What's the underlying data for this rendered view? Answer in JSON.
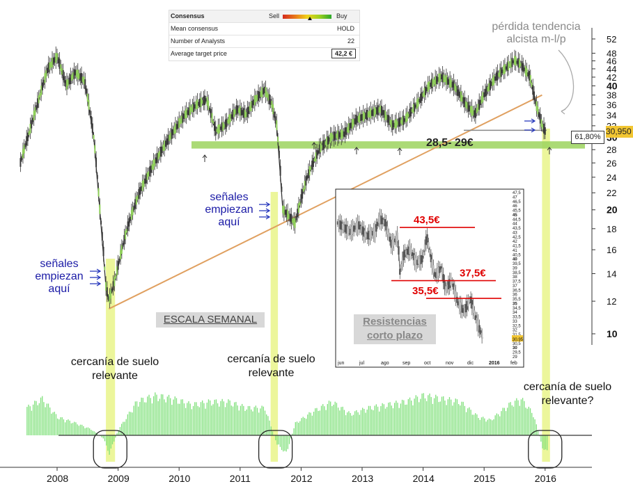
{
  "consensus": {
    "title": "Consensus",
    "sell": "Sell",
    "buy": "Buy",
    "rows": [
      {
        "label": "Mean consensus",
        "value": "HOLD"
      },
      {
        "label": "Number of Analysts",
        "value": "22"
      },
      {
        "label": "Average target price",
        "value": "42,2 €"
      }
    ]
  },
  "annotations": {
    "trend_loss": "pérdida tendencia alcista m-l/p",
    "signals_1": "señales empiezan aquí",
    "signals_2": "señales empiezan aquí",
    "weekly_scale": "ESCALA SEMANAL",
    "support_zone": "28,5- 29€",
    "fib_level": "61,80%",
    "last_price": "30,950",
    "floor_1": "cercanía de suelo relevante",
    "floor_2": "cercanía de suelo relevante",
    "floor_3": "cercanía de suelo relevante?",
    "resistances": "Resistencias corto plazo"
  },
  "chart_data": [
    {
      "type": "line",
      "title": "ESCALA SEMANAL",
      "x_label": "",
      "y_label": "",
      "y_scale": "log",
      "ylim": [
        9,
        54
      ],
      "y_ticks": [
        52,
        48,
        46,
        44,
        42,
        40,
        38,
        36,
        34,
        32,
        30,
        28,
        26,
        24,
        22,
        20,
        18,
        16,
        14,
        12,
        10
      ],
      "x_ticks": [
        "2008",
        "2009",
        "2010",
        "2011",
        "2012",
        "2013",
        "2014",
        "2015",
        "2016"
      ],
      "series": [
        {
          "name": "price",
          "x": [
            2007.4,
            2007.55,
            2007.7,
            2007.85,
            2008.0,
            2008.15,
            2008.3,
            2008.45,
            2008.6,
            2008.7,
            2008.8,
            2008.85,
            2008.95,
            2009.15,
            2009.35,
            2009.6,
            2009.85,
            2010.1,
            2010.3,
            2010.45,
            2010.6,
            2010.75,
            2010.95,
            2011.1,
            2011.25,
            2011.4,
            2011.52,
            2011.6,
            2011.7,
            2011.9,
            2012.1,
            2012.3,
            2012.5,
            2012.7,
            2012.9,
            2013.1,
            2013.3,
            2013.5,
            2013.7,
            2013.9,
            2014.1,
            2014.3,
            2014.5,
            2014.7,
            2014.85,
            2015.0,
            2015.2,
            2015.35,
            2015.5,
            2015.6,
            2015.75,
            2015.85,
            2015.95,
            2016.0
          ],
          "values": [
            26,
            31,
            37,
            44,
            47,
            40,
            43,
            41,
            30,
            20,
            13,
            12,
            13.5,
            18,
            22,
            26,
            30,
            34,
            36,
            37,
            31,
            32,
            35,
            34,
            37,
            39,
            36,
            32,
            20,
            18.5,
            24,
            28,
            30,
            30.5,
            33,
            34,
            35,
            32,
            33,
            36,
            40,
            42,
            40,
            36,
            34,
            38,
            42,
            44,
            46,
            45,
            42,
            36,
            32,
            31
          ]
        }
      ],
      "support_band": [
        28.5,
        29
      ],
      "fib_retracement": {
        "label": "61,80%",
        "value": 30.95
      },
      "trendline": {
        "from": {
          "x": 2008.85,
          "y": 11.5
        },
        "to": {
          "x": 2015.95,
          "y": 38
        }
      },
      "histogram": {
        "name": "oscillator",
        "x": [
          2007.5,
          2007.75,
          2008.0,
          2008.3,
          2008.55,
          2008.75,
          2008.85,
          2009.0,
          2009.3,
          2009.6,
          2009.9,
          2010.2,
          2010.5,
          2010.8,
          2011.1,
          2011.4,
          2011.6,
          2011.75,
          2011.9,
          2012.2,
          2012.5,
          2012.8,
          2013.1,
          2013.4,
          2013.7,
          2014.0,
          2014.3,
          2014.6,
          2014.9,
          2015.1,
          2015.4,
          2015.6,
          2015.8,
          2015.95,
          2016.05
        ],
        "values": [
          45,
          60,
          30,
          20,
          10,
          -5,
          -30,
          10,
          55,
          65,
          60,
          50,
          55,
          55,
          45,
          45,
          -15,
          -30,
          20,
          40,
          55,
          35,
          45,
          50,
          55,
          65,
          60,
          55,
          30,
          25,
          50,
          60,
          35,
          -20,
          -30
        ]
      }
    },
    {
      "type": "line",
      "title": "Resistencias corto plazo",
      "x_ticks": [
        "jun",
        "jul",
        "ago",
        "sep",
        "oct",
        "nov",
        "dic",
        "2016",
        "feb"
      ],
      "y_ticks": [
        "47,5",
        "47",
        "46,5",
        "46",
        "45,5",
        "45",
        "44,5",
        "44",
        "43,5",
        "43",
        "42,5",
        "42",
        "41,5",
        "41",
        "40,5",
        "40",
        "39,5",
        "39",
        "38,5",
        "38",
        "37,5",
        "37",
        "36,5",
        "36",
        "35,5",
        "35",
        "34,5",
        "34",
        "33,5",
        "33",
        "32,5",
        "32",
        "31,5",
        "31",
        "30,95",
        "30,5",
        "30",
        "29,5",
        "29"
      ],
      "ylim": [
        29,
        47.5
      ],
      "resistance_levels": [
        {
          "label": "43,5€",
          "value": 43.5
        },
        {
          "label": "37,5€",
          "value": 37.5
        },
        {
          "label": "35,5€",
          "value": 35.5
        }
      ],
      "series": [
        {
          "name": "price",
          "x": [
            0.0,
            0.3,
            0.6,
            1.0,
            1.4,
            1.8,
            2.0,
            2.3,
            2.6,
            2.9,
            3.0,
            3.2,
            3.5,
            3.8,
            4.1,
            4.3,
            4.5,
            4.7,
            5.0,
            5.2,
            5.5,
            5.8,
            6.1,
            6.4,
            6.7,
            7.0
          ],
          "values": [
            44.0,
            43.5,
            43.0,
            43.8,
            42.5,
            43.0,
            44.5,
            44.0,
            41.5,
            42.5,
            38.5,
            40.5,
            41.0,
            39.5,
            40.0,
            42.5,
            40.0,
            38.0,
            39.0,
            36.5,
            37.5,
            35.0,
            34.0,
            35.5,
            33.0,
            31.0
          ]
        }
      ]
    }
  ]
}
